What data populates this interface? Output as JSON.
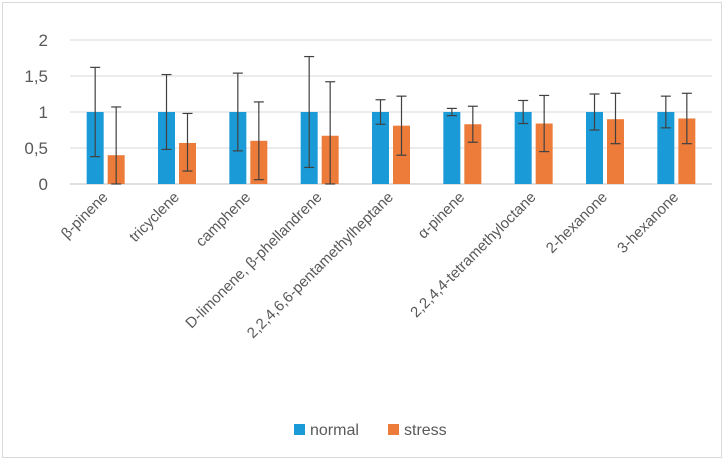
{
  "chart_data": {
    "type": "bar",
    "title": "",
    "xlabel": "",
    "ylabel": "",
    "ylim": [
      0,
      2
    ],
    "yticks": [
      "0",
      "0,5",
      "1",
      "1,5",
      "2"
    ],
    "yticks_values": [
      0,
      0.5,
      1,
      1.5,
      2
    ],
    "grid": true,
    "legend": "bottom",
    "categories": [
      "β-pinene",
      "tricyclene",
      "camphene",
      "D-limonene, β-phellandrene",
      "2,2,4,6,6-pentamethylheptane",
      "α-pinene",
      "2,2,4,4-tetramethyloctane",
      "2-hexanone",
      "3-hexanone"
    ],
    "series": [
      {
        "name": "normal",
        "color": "#1a9bd7",
        "values": [
          1,
          1,
          1,
          1,
          1,
          1,
          1,
          1,
          1
        ],
        "err_low": [
          0.38,
          0.48,
          0.46,
          0.23,
          0.83,
          0.95,
          0.84,
          0.75,
          0.78
        ],
        "err_high": [
          1.62,
          1.52,
          1.54,
          1.77,
          1.17,
          1.05,
          1.16,
          1.25,
          1.22
        ]
      },
      {
        "name": "stress",
        "color": "#ed7b3a",
        "values": [
          0.4,
          0.57,
          0.6,
          0.67,
          0.81,
          0.83,
          0.84,
          0.9,
          0.91
        ],
        "err_low": [
          0,
          0.18,
          0.06,
          0,
          0.4,
          0.58,
          0.45,
          0.56,
          0.56
        ],
        "err_high": [
          1.07,
          0.98,
          1.14,
          1.42,
          1.22,
          1.08,
          1.23,
          1.26,
          1.26
        ]
      }
    ]
  }
}
